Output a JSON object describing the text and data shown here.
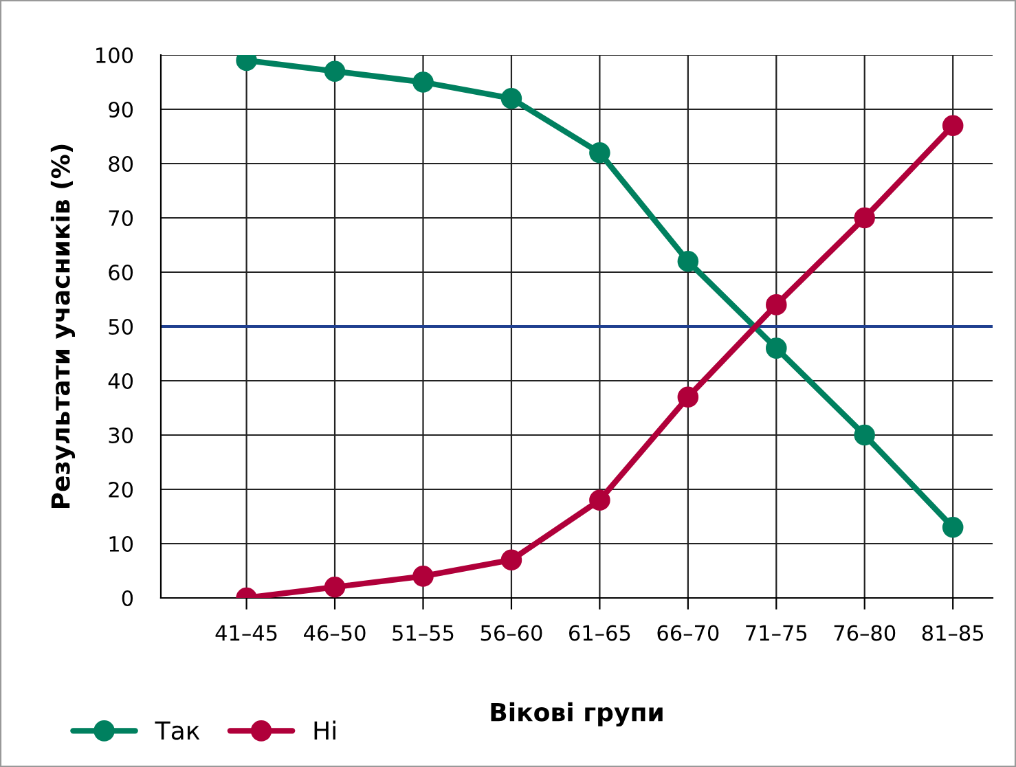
{
  "chart_data": {
    "type": "line",
    "xlabel": "Вікові групи",
    "ylabel": "Результати учасників (%)",
    "categories": [
      "41–45",
      "46–50",
      "51–55",
      "56–60",
      "61–65",
      "66–70",
      "71–75",
      "76–80",
      "81–85"
    ],
    "series": [
      {
        "name": "Так",
        "color": "#00805f",
        "values": [
          99,
          97,
          95,
          92,
          82,
          62,
          46,
          30,
          13
        ]
      },
      {
        "name": "Ні",
        "color": "#b0003a",
        "values": [
          0,
          2,
          4,
          7,
          18,
          37,
          54,
          70,
          87
        ]
      }
    ],
    "ylim": [
      0,
      100
    ],
    "yticks": [
      0,
      10,
      20,
      30,
      40,
      50,
      60,
      70,
      80,
      90,
      100
    ],
    "ref_lines": [
      {
        "axis": "y",
        "value": 50,
        "color": "#1f3f8f"
      }
    ],
    "grid": true,
    "legend": "bottom left",
    "marker": "circle",
    "line_style": "solid"
  }
}
